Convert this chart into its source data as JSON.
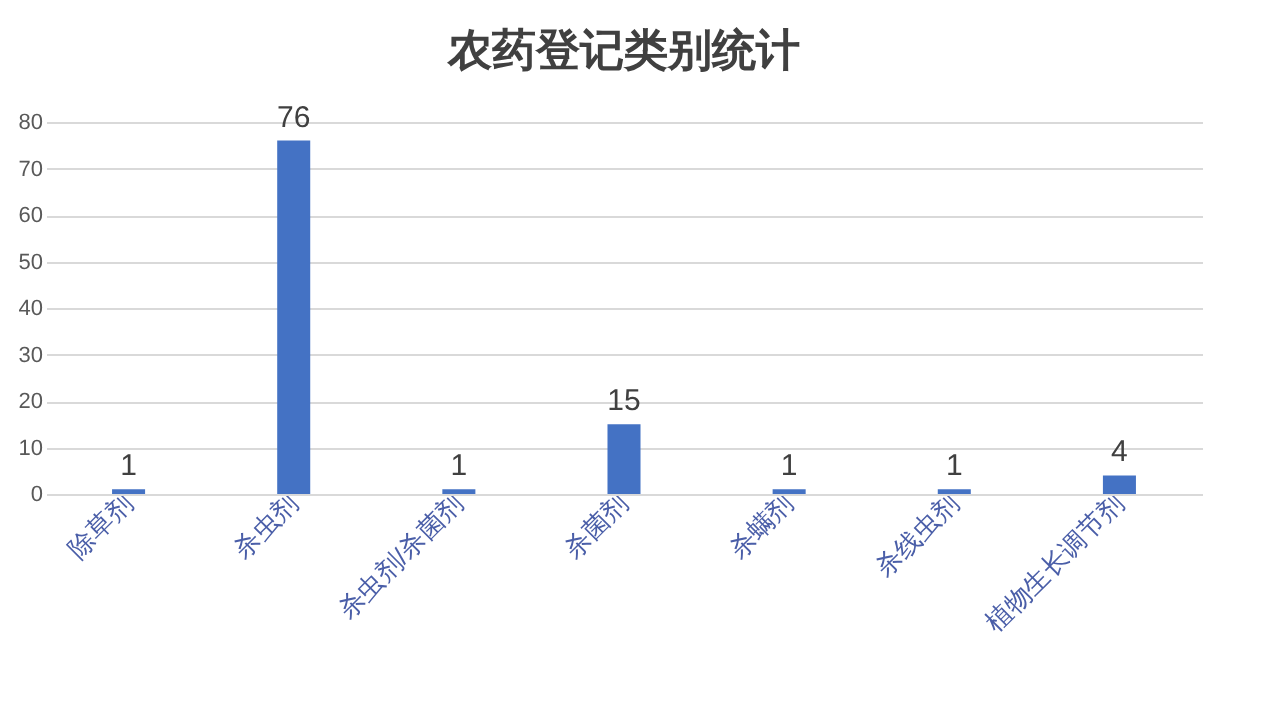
{
  "chart_data": {
    "type": "bar",
    "title": "农药登记类别统计",
    "categories": [
      "除草剂",
      "杀虫剂",
      "杀虫剂/杀菌剂",
      "杀菌剂",
      "杀螨剂",
      "杀线虫剂",
      "植物生长调节剂"
    ],
    "values": [
      1,
      76,
      1,
      15,
      1,
      1,
      4
    ],
    "color": "#4472c4",
    "ylim": [
      0,
      80
    ],
    "yticks": [
      0,
      10,
      20,
      30,
      40,
      50,
      60,
      70,
      80
    ],
    "grid": "y",
    "data_labels": true
  }
}
